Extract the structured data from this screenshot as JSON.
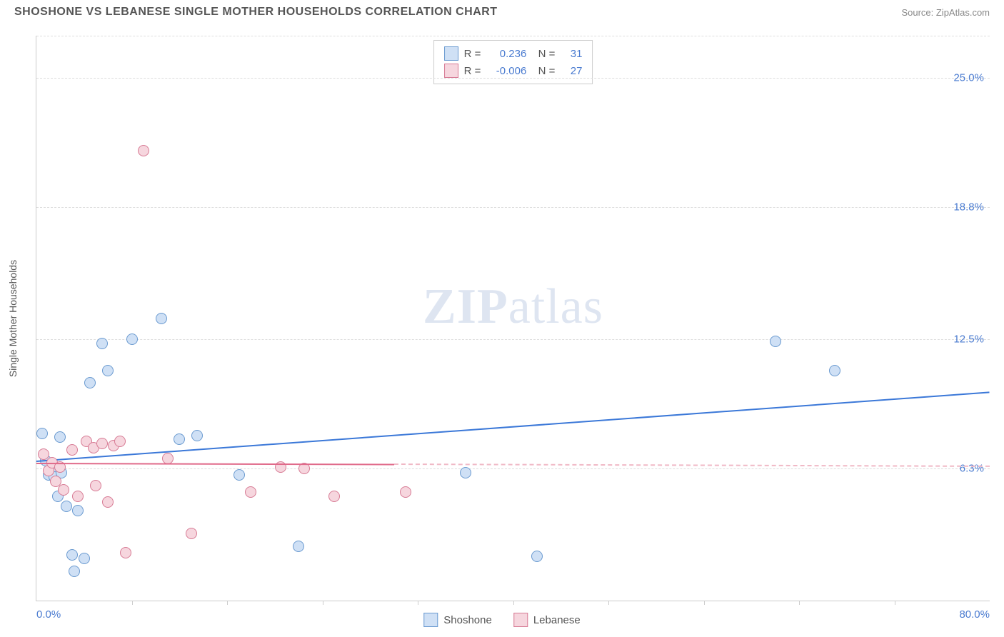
{
  "header": {
    "title": "SHOSHONE VS LEBANESE SINGLE MOTHER HOUSEHOLDS CORRELATION CHART",
    "source": "Source: ZipAtlas.com"
  },
  "watermark": {
    "zip": "ZIP",
    "atlas": "atlas"
  },
  "chart": {
    "type": "scatter",
    "ylabel": "Single Mother Households",
    "xlim": [
      0,
      80
    ],
    "ylim": [
      0,
      27
    ],
    "xticks_minor": [
      8,
      16,
      24,
      32,
      40,
      48,
      56,
      64,
      72
    ],
    "xtick_labels": [
      {
        "x": 0,
        "text": "0.0%",
        "align": "left"
      },
      {
        "x": 80,
        "text": "80.0%",
        "align": "right"
      }
    ],
    "ytick_labels": [
      {
        "y": 6.3,
        "text": "6.3%"
      },
      {
        "y": 12.5,
        "text": "12.5%"
      },
      {
        "y": 18.8,
        "text": "18.8%"
      },
      {
        "y": 25.0,
        "text": "25.0%"
      }
    ],
    "grid_y": [
      6.3,
      12.5,
      18.8,
      25.0,
      27.0
    ],
    "grid_color": "#dddddd",
    "axis_color": "#cccccc",
    "background_color": "#ffffff",
    "label_color": "#4a7bd0",
    "marker_radius": 8,
    "series": [
      {
        "name": "Shoshone",
        "fill": "#cfe0f5",
        "stroke": "#6a9ad0",
        "trend": {
          "x1": 0,
          "y1": 6.7,
          "x2": 80,
          "y2": 10.0,
          "color": "#3b78d8",
          "width": 2
        },
        "points": [
          [
            0.5,
            8.0
          ],
          [
            0.8,
            6.7
          ],
          [
            1.0,
            6.0
          ],
          [
            1.2,
            6.2
          ],
          [
            1.5,
            5.9
          ],
          [
            1.8,
            5.0
          ],
          [
            2.0,
            7.8
          ],
          [
            2.1,
            6.1
          ],
          [
            2.5,
            4.5
          ],
          [
            3.0,
            2.2
          ],
          [
            3.2,
            1.4
          ],
          [
            3.5,
            4.3
          ],
          [
            4.0,
            2.0
          ],
          [
            4.5,
            10.4
          ],
          [
            5.5,
            12.3
          ],
          [
            6.0,
            11.0
          ],
          [
            8.0,
            12.5
          ],
          [
            10.5,
            13.5
          ],
          [
            12.0,
            7.7
          ],
          [
            13.5,
            7.9
          ],
          [
            17.0,
            6.0
          ],
          [
            22.0,
            2.6
          ],
          [
            36.0,
            6.1
          ],
          [
            42.0,
            2.1
          ],
          [
            62.0,
            12.4
          ],
          [
            67.0,
            11.0
          ]
        ]
      },
      {
        "name": "Lebanese",
        "fill": "#f6d6de",
        "stroke": "#d77a94",
        "trend_solid": {
          "x1": 0,
          "y1": 6.6,
          "x2": 30,
          "y2": 6.55,
          "color": "#e06a8a",
          "width": 2
        },
        "trend_dashed": {
          "x1": 30,
          "y1": 6.55,
          "x2": 80,
          "y2": 6.45,
          "color": "#f0b9c6",
          "width": 2
        },
        "points": [
          [
            0.6,
            7.0
          ],
          [
            1.0,
            6.2
          ],
          [
            1.3,
            6.6
          ],
          [
            1.6,
            5.7
          ],
          [
            2.0,
            6.4
          ],
          [
            2.3,
            5.3
          ],
          [
            3.0,
            7.2
          ],
          [
            3.5,
            5.0
          ],
          [
            4.2,
            7.6
          ],
          [
            4.8,
            7.3
          ],
          [
            5.0,
            5.5
          ],
          [
            5.5,
            7.5
          ],
          [
            6.0,
            4.7
          ],
          [
            6.5,
            7.4
          ],
          [
            7.0,
            7.6
          ],
          [
            7.5,
            2.3
          ],
          [
            9.0,
            21.5
          ],
          [
            11.0,
            6.8
          ],
          [
            13.0,
            3.2
          ],
          [
            18.0,
            5.2
          ],
          [
            20.5,
            6.4
          ],
          [
            22.5,
            6.3
          ],
          [
            25.0,
            5.0
          ],
          [
            31.0,
            5.2
          ]
        ]
      }
    ],
    "legend_top": [
      {
        "swatch_fill": "#cfe0f5",
        "swatch_stroke": "#6a9ad0",
        "r_label": "R =",
        "r_val": "0.236",
        "n_label": "N =",
        "n_val": "31"
      },
      {
        "swatch_fill": "#f6d6de",
        "swatch_stroke": "#d77a94",
        "r_label": "R =",
        "r_val": "-0.006",
        "n_label": "N =",
        "n_val": "27"
      }
    ],
    "legend_bottom": [
      {
        "swatch_fill": "#cfe0f5",
        "swatch_stroke": "#6a9ad0",
        "label": "Shoshone"
      },
      {
        "swatch_fill": "#f6d6de",
        "swatch_stroke": "#d77a94",
        "label": "Lebanese"
      }
    ]
  }
}
